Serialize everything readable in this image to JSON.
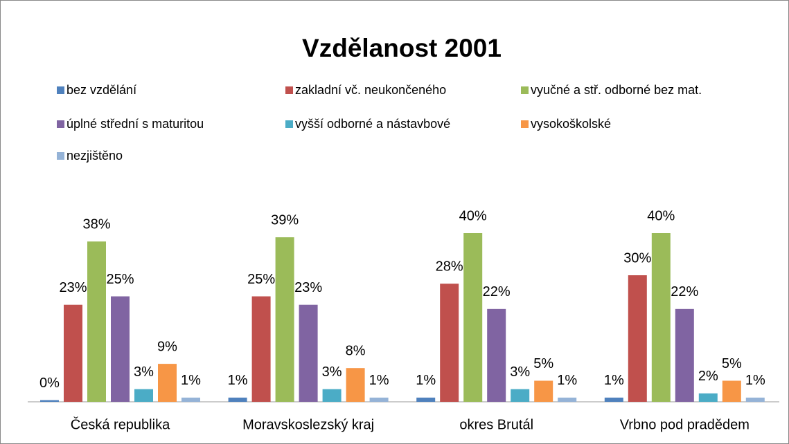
{
  "chart_data": {
    "type": "bar",
    "title": "Vzdělanost 2001",
    "categories": [
      "Česká republika",
      "Moravskoslezský kraj",
      "okres Brutál",
      "Vrbno pod pradědem"
    ],
    "series": [
      {
        "name": "bez vzdělání",
        "color": "#4f81bd",
        "values": [
          0.4,
          1,
          1,
          1
        ],
        "value_labels": [
          "0%",
          "1%",
          "1%",
          "1%"
        ]
      },
      {
        "name": "zakladní vč. neukončeného",
        "color": "#c0504d",
        "values": [
          23,
          25,
          28,
          30
        ],
        "value_labels": [
          "23%",
          "25%",
          "28%",
          "30%"
        ]
      },
      {
        "name": "vyučné a stř. odborné bez mat.",
        "color": "#9bbb59",
        "values": [
          38,
          39,
          40,
          40
        ],
        "value_labels": [
          "38%",
          "39%",
          "40%",
          "40%"
        ]
      },
      {
        "name": "úplné střední s maturitou",
        "color": "#8064a2",
        "values": [
          25,
          23,
          22,
          22
        ],
        "value_labels": [
          "25%",
          "23%",
          "22%",
          "22%"
        ]
      },
      {
        "name": "vyšší odborné a nástavbové",
        "color": "#4bacc6",
        "values": [
          3,
          3,
          3,
          2
        ],
        "value_labels": [
          "3%",
          "3%",
          "3%",
          "2%"
        ]
      },
      {
        "name": "vysokoškolské",
        "color": "#f79646",
        "values": [
          9,
          8,
          5,
          5
        ],
        "value_labels": [
          "9%",
          "8%",
          "5%",
          "5%"
        ]
      },
      {
        "name": "nezjištěno",
        "color": "#95b3d7",
        "values": [
          1,
          1,
          1,
          1
        ],
        "value_labels": [
          "1%",
          "1%",
          "1%",
          "1%"
        ]
      }
    ],
    "legend": "top"
  }
}
